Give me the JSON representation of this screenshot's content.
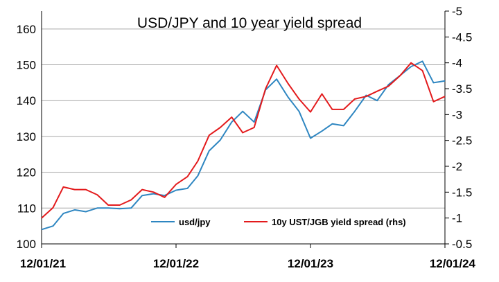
{
  "chart_data": {
    "type": "line",
    "title": "USD/JPY and 10 year yield spread",
    "x_start": "2021-01-12",
    "x_end": "2024-01-12",
    "x_ticks": [
      "12/01/21",
      "12/01/22",
      "12/01/23",
      "12/01/24"
    ],
    "y_left": {
      "min": 100,
      "max": 165,
      "ticks": [
        "100",
        "110",
        "120",
        "130",
        "140",
        "150",
        "160"
      ]
    },
    "y_right": {
      "min": -0.5,
      "max": -5,
      "reversed": true,
      "ticks": [
        "-0.5",
        "-1",
        "-1.5",
        "-2",
        "-2.5",
        "-3",
        "-3.5",
        "-4",
        "-4.5",
        "-5"
      ]
    },
    "grid": true,
    "legend_position": "bottom-right",
    "series": [
      {
        "name": "usd/jpy",
        "axis": "left",
        "color": "#2E86C1",
        "points": [
          [
            "2021-01-12",
            104.0
          ],
          [
            "2021-02-12",
            105.0
          ],
          [
            "2021-03-12",
            108.5
          ],
          [
            "2021-04-12",
            109.5
          ],
          [
            "2021-05-12",
            109.0
          ],
          [
            "2021-06-12",
            110.0
          ],
          [
            "2021-07-12",
            110.0
          ],
          [
            "2021-08-12",
            109.8
          ],
          [
            "2021-09-12",
            110.0
          ],
          [
            "2021-10-12",
            113.5
          ],
          [
            "2021-11-12",
            114.0
          ],
          [
            "2021-12-12",
            113.5
          ],
          [
            "2022-01-12",
            115.0
          ],
          [
            "2022-02-12",
            115.5
          ],
          [
            "2022-03-12",
            119.0
          ],
          [
            "2022-04-12",
            126.0
          ],
          [
            "2022-05-12",
            129.0
          ],
          [
            "2022-06-12",
            134.0
          ],
          [
            "2022-07-12",
            137.0
          ],
          [
            "2022-08-12",
            134.0
          ],
          [
            "2022-09-12",
            143.0
          ],
          [
            "2022-10-12",
            146.0
          ],
          [
            "2022-11-12",
            141.0
          ],
          [
            "2022-12-12",
            137.0
          ],
          [
            "2023-01-12",
            129.5
          ],
          [
            "2023-02-12",
            131.5
          ],
          [
            "2023-03-12",
            133.5
          ],
          [
            "2023-04-12",
            133.0
          ],
          [
            "2023-05-12",
            137.0
          ],
          [
            "2023-06-12",
            141.5
          ],
          [
            "2023-07-12",
            140.0
          ],
          [
            "2023-08-12",
            144.5
          ],
          [
            "2023-09-12",
            147.0
          ],
          [
            "2023-10-12",
            149.5
          ],
          [
            "2023-11-12",
            151.0
          ],
          [
            "2023-12-12",
            145.0
          ],
          [
            "2024-01-12",
            145.5
          ]
        ]
      },
      {
        "name": "10y UST/JGB yield spread (rhs)",
        "axis": "right",
        "color": "#E31A1C",
        "points": [
          [
            "2021-01-12",
            -1.0
          ],
          [
            "2021-02-12",
            -1.2
          ],
          [
            "2021-03-12",
            -1.6
          ],
          [
            "2021-04-12",
            -1.55
          ],
          [
            "2021-05-12",
            -1.55
          ],
          [
            "2021-06-12",
            -1.45
          ],
          [
            "2021-07-12",
            -1.25
          ],
          [
            "2021-08-12",
            -1.25
          ],
          [
            "2021-09-12",
            -1.35
          ],
          [
            "2021-10-12",
            -1.55
          ],
          [
            "2021-11-12",
            -1.5
          ],
          [
            "2021-12-12",
            -1.4
          ],
          [
            "2022-01-12",
            -1.65
          ],
          [
            "2022-02-12",
            -1.8
          ],
          [
            "2022-03-12",
            -2.1
          ],
          [
            "2022-04-12",
            -2.6
          ],
          [
            "2022-05-12",
            -2.75
          ],
          [
            "2022-06-12",
            -2.95
          ],
          [
            "2022-07-12",
            -2.65
          ],
          [
            "2022-08-12",
            -2.75
          ],
          [
            "2022-09-12",
            -3.5
          ],
          [
            "2022-10-12",
            -3.95
          ],
          [
            "2022-11-12",
            -3.6
          ],
          [
            "2022-12-12",
            -3.3
          ],
          [
            "2023-01-12",
            -3.05
          ],
          [
            "2023-02-12",
            -3.4
          ],
          [
            "2023-03-12",
            -3.1
          ],
          [
            "2023-04-12",
            -3.1
          ],
          [
            "2023-05-12",
            -3.3
          ],
          [
            "2023-06-12",
            -3.35
          ],
          [
            "2023-07-12",
            -3.45
          ],
          [
            "2023-08-12",
            -3.55
          ],
          [
            "2023-09-12",
            -3.75
          ],
          [
            "2023-10-12",
            -4.0
          ],
          [
            "2023-11-12",
            -3.85
          ],
          [
            "2023-12-12",
            -3.25
          ],
          [
            "2024-01-12",
            -3.35
          ]
        ]
      }
    ]
  }
}
